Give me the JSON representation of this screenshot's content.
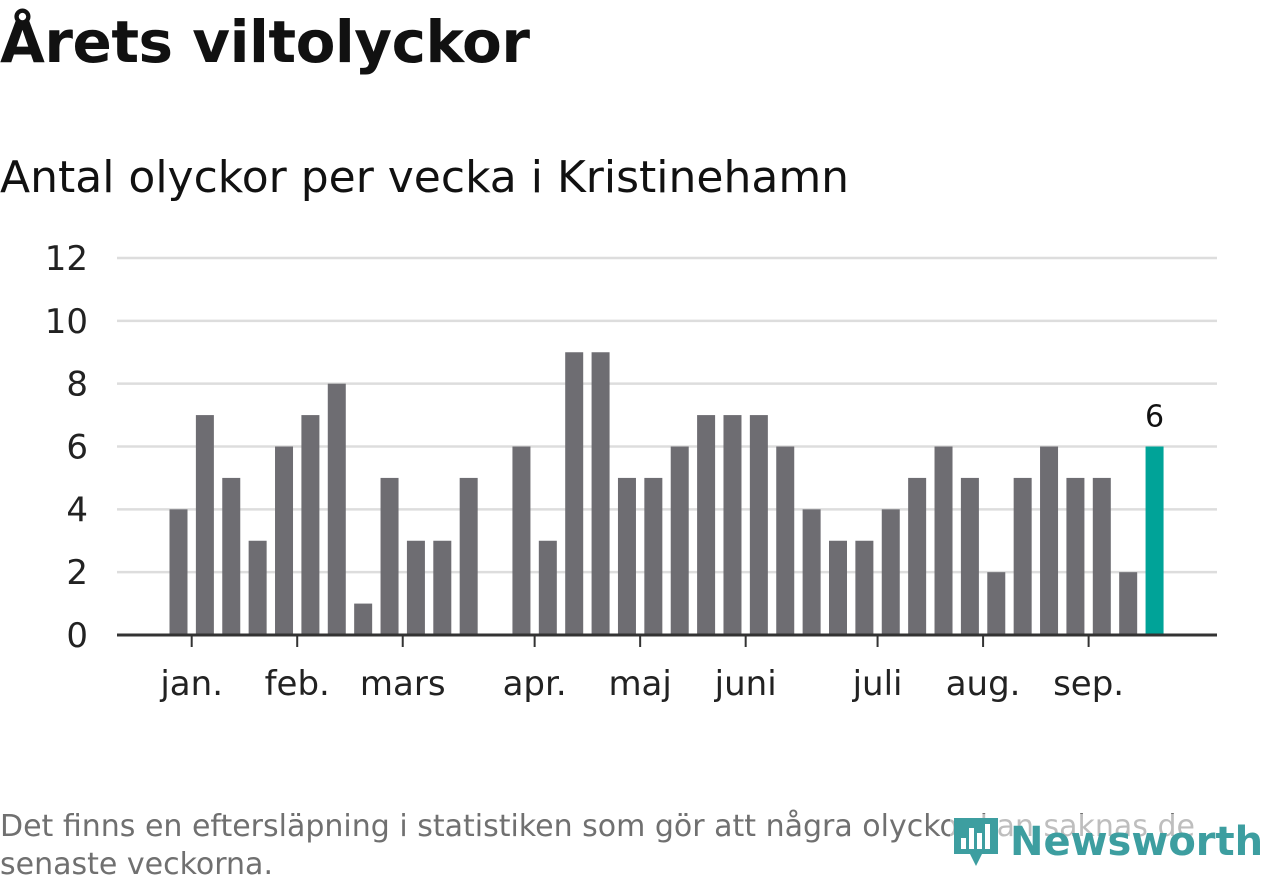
{
  "title": "Årets viltolyckor",
  "subtitle": "Antal olyckor per vecka i Kristinehamn",
  "footnote": "Det finns en eftersläpning i statistiken som gör att några olyckor kan saknas de senaste veckorna.",
  "brand": {
    "name": "Newsworthy",
    "icon": "bar-chart-pin-icon",
    "color": "#3d9ea0"
  },
  "colors": {
    "bar": "#6e6d72",
    "highlight": "#00a398",
    "grid": "#dddddd",
    "axis": "#333333",
    "text": "#222222"
  },
  "chart_data": {
    "type": "bar",
    "title": "Antal olyckor per vecka i Kristinehamn",
    "xlabel": "",
    "ylabel": "",
    "ylim": [
      0,
      12
    ],
    "yticks": [
      0,
      2,
      4,
      6,
      8,
      10,
      12
    ],
    "grid": true,
    "weeks": [
      1,
      2,
      3,
      4,
      5,
      6,
      7,
      8,
      9,
      10,
      11,
      12,
      13,
      14,
      15,
      16,
      17,
      18,
      19,
      20,
      21,
      22,
      23,
      24,
      25,
      26,
      27,
      28,
      29,
      30,
      31,
      32,
      33,
      34,
      35,
      36,
      37,
      38
    ],
    "values": [
      4,
      7,
      5,
      3,
      6,
      7,
      8,
      1,
      5,
      3,
      3,
      5,
      0,
      6,
      3,
      9,
      9,
      5,
      5,
      6,
      7,
      7,
      7,
      6,
      4,
      3,
      3,
      4,
      5,
      6,
      5,
      2,
      5,
      6,
      5,
      5,
      2,
      6
    ],
    "month_ticks": [
      {
        "label": "jan.",
        "week": 1.5
      },
      {
        "label": "feb.",
        "week": 5.5
      },
      {
        "label": "mars",
        "week": 9.5
      },
      {
        "label": "apr.",
        "week": 14.5
      },
      {
        "label": "maj",
        "week": 18.5
      },
      {
        "label": "juni",
        "week": 22.5
      },
      {
        "label": "juli",
        "week": 27.5
      },
      {
        "label": "aug.",
        "week": 31.5
      },
      {
        "label": "sep.",
        "week": 35.5
      }
    ],
    "highlight": {
      "week": 38,
      "label": "6"
    }
  }
}
